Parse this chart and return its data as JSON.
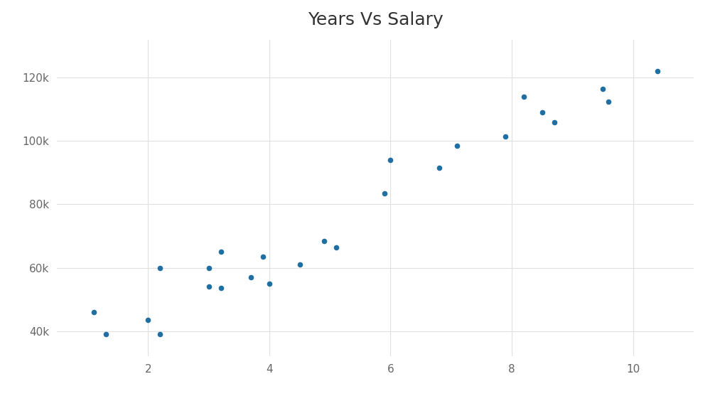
{
  "title": "Years Vs Salary",
  "x": [
    1.1,
    1.3,
    2.0,
    2.2,
    2.2,
    3.0,
    3.0,
    3.2,
    3.2,
    3.7,
    3.9,
    4.0,
    4.5,
    4.9,
    5.1,
    5.9,
    6.0,
    6.8,
    7.1,
    7.9,
    8.2,
    8.5,
    8.7,
    9.5,
    9.6,
    10.4
  ],
  "y": [
    46000,
    39000,
    43500,
    39000,
    60000,
    54000,
    60000,
    65000,
    53500,
    57000,
    63500,
    55000,
    61000,
    68500,
    66500,
    83500,
    94000,
    91500,
    98500,
    101500,
    114000,
    109000,
    106000,
    116500,
    112500,
    122000
  ],
  "dot_color": "#1f6fa3",
  "dot_size": 20,
  "background_color": "#ffffff",
  "plot_bg_color": "#ffffff",
  "grid_color": "#e0e0e0",
  "title_fontsize": 18,
  "title_color": "#333333",
  "xlim": [
    0.5,
    11
  ],
  "ylim": [
    32000,
    132000
  ],
  "xticks": [
    2,
    4,
    6,
    8,
    10
  ],
  "yticks": [
    40000,
    60000,
    80000,
    100000,
    120000
  ],
  "ytick_labels": [
    "40k",
    "60k",
    "80k",
    "100k",
    "120k"
  ],
  "tick_color": "#666666",
  "tick_fontsize": 11
}
